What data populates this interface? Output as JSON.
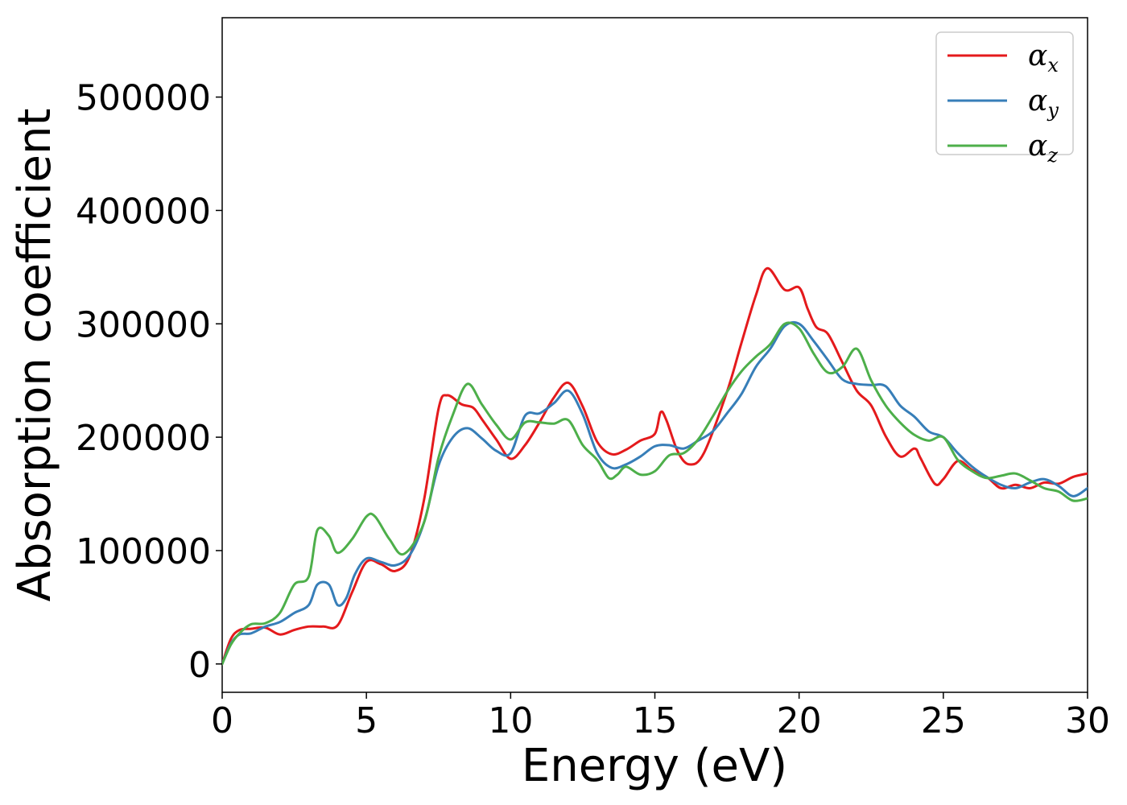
{
  "chart_data": {
    "type": "line",
    "title": "",
    "xlabel": "Energy (eV)",
    "ylabel": "Absorption coefficient",
    "xlim": [
      0,
      30
    ],
    "ylim": [
      -25000,
      570000
    ],
    "x_ticks": [
      0,
      5,
      10,
      15,
      20,
      25,
      30
    ],
    "y_ticks": [
      0,
      100000,
      200000,
      300000,
      400000,
      500000
    ],
    "grid": false,
    "legend": "top-right",
    "series": [
      {
        "name": "αx",
        "legend_base": "α",
        "legend_sub": "x",
        "color": "#e41a1c",
        "points": [
          [
            0,
            0
          ],
          [
            0.3,
            22000
          ],
          [
            0.6,
            30000
          ],
          [
            1,
            31000
          ],
          [
            1.5,
            32000
          ],
          [
            2,
            26000
          ],
          [
            2.5,
            30000
          ],
          [
            3,
            33000
          ],
          [
            3.5,
            33000
          ],
          [
            4,
            34000
          ],
          [
            4.5,
            63000
          ],
          [
            5,
            90000
          ],
          [
            5.5,
            88000
          ],
          [
            6,
            82000
          ],
          [
            6.5,
            95000
          ],
          [
            7,
            145000
          ],
          [
            7.5,
            225000
          ],
          [
            7.8,
            237000
          ],
          [
            8.3,
            229000
          ],
          [
            8.7,
            226000
          ],
          [
            9,
            216000
          ],
          [
            9.5,
            198000
          ],
          [
            10,
            181000
          ],
          [
            10.5,
            193000
          ],
          [
            11,
            213000
          ],
          [
            11.5,
            235000
          ],
          [
            12,
            248000
          ],
          [
            12.5,
            227000
          ],
          [
            13,
            196000
          ],
          [
            13.5,
            185000
          ],
          [
            14,
            189000
          ],
          [
            14.5,
            197000
          ],
          [
            15,
            203000
          ],
          [
            15.2,
            222000
          ],
          [
            15.4,
            215000
          ],
          [
            15.8,
            187000
          ],
          [
            16.2,
            176000
          ],
          [
            16.7,
            186000
          ],
          [
            17.5,
            240000
          ],
          [
            18,
            283000
          ],
          [
            18.5,
            325000
          ],
          [
            18.9,
            349000
          ],
          [
            19.5,
            330000
          ],
          [
            20,
            332000
          ],
          [
            20.3,
            313000
          ],
          [
            20.6,
            297000
          ],
          [
            21,
            291000
          ],
          [
            21.5,
            266000
          ],
          [
            22,
            241000
          ],
          [
            22.5,
            228000
          ],
          [
            23,
            201000
          ],
          [
            23.5,
            183000
          ],
          [
            24,
            190000
          ],
          [
            24.2,
            182000
          ],
          [
            24.7,
            159000
          ],
          [
            25,
            163000
          ],
          [
            25.5,
            179000
          ],
          [
            26,
            171000
          ],
          [
            26.5,
            165000
          ],
          [
            27,
            155000
          ],
          [
            27.5,
            158000
          ],
          [
            28,
            155000
          ],
          [
            28.5,
            160000
          ],
          [
            29,
            159000
          ],
          [
            29.5,
            165000
          ],
          [
            30,
            168000
          ]
        ]
      },
      {
        "name": "αy",
        "legend_base": "α",
        "legend_sub": "y",
        "color": "#377eb8",
        "points": [
          [
            0,
            0
          ],
          [
            0.3,
            18000
          ],
          [
            0.6,
            26000
          ],
          [
            1,
            27000
          ],
          [
            1.5,
            33000
          ],
          [
            2,
            37000
          ],
          [
            2.5,
            45000
          ],
          [
            3,
            52000
          ],
          [
            3.3,
            70000
          ],
          [
            3.7,
            70000
          ],
          [
            4,
            52000
          ],
          [
            4.3,
            58000
          ],
          [
            4.6,
            79000
          ],
          [
            5,
            93000
          ],
          [
            5.5,
            90000
          ],
          [
            6,
            87000
          ],
          [
            6.5,
            96000
          ],
          [
            7,
            125000
          ],
          [
            7.5,
            175000
          ],
          [
            8,
            200000
          ],
          [
            8.5,
            208000
          ],
          [
            9,
            199000
          ],
          [
            9.5,
            188000
          ],
          [
            10,
            186000
          ],
          [
            10.5,
            219000
          ],
          [
            11,
            221000
          ],
          [
            11.5,
            230000
          ],
          [
            12,
            241000
          ],
          [
            12.5,
            220000
          ],
          [
            13,
            186000
          ],
          [
            13.5,
            173000
          ],
          [
            14,
            176000
          ],
          [
            14.5,
            183000
          ],
          [
            15,
            192000
          ],
          [
            15.5,
            193000
          ],
          [
            16,
            190000
          ],
          [
            16.5,
            197000
          ],
          [
            17,
            205000
          ],
          [
            17.5,
            221000
          ],
          [
            18,
            238000
          ],
          [
            18.5,
            262000
          ],
          [
            19,
            278000
          ],
          [
            19.5,
            298000
          ],
          [
            20,
            300000
          ],
          [
            20.5,
            285000
          ],
          [
            21,
            268000
          ],
          [
            21.5,
            251000
          ],
          [
            22,
            247000
          ],
          [
            22.5,
            246000
          ],
          [
            23,
            245000
          ],
          [
            23.5,
            228000
          ],
          [
            24,
            218000
          ],
          [
            24.5,
            205000
          ],
          [
            25,
            200000
          ],
          [
            25.5,
            186000
          ],
          [
            26,
            174000
          ],
          [
            26.5,
            165000
          ],
          [
            27,
            158000
          ],
          [
            27.5,
            155000
          ],
          [
            28,
            160000
          ],
          [
            28.5,
            163000
          ],
          [
            29,
            157000
          ],
          [
            29.5,
            148000
          ],
          [
            30,
            155000
          ]
        ]
      },
      {
        "name": "αz",
        "legend_base": "α",
        "legend_sub": "z",
        "color": "#4daf4a",
        "points": [
          [
            0,
            0
          ],
          [
            0.3,
            17000
          ],
          [
            0.6,
            27000
          ],
          [
            1,
            35000
          ],
          [
            1.5,
            36000
          ],
          [
            2,
            45000
          ],
          [
            2.5,
            70000
          ],
          [
            3,
            77000
          ],
          [
            3.3,
            118000
          ],
          [
            3.7,
            113000
          ],
          [
            4,
            98000
          ],
          [
            4.5,
            110000
          ],
          [
            5,
            130000
          ],
          [
            5.3,
            130000
          ],
          [
            5.8,
            110000
          ],
          [
            6.3,
            97000
          ],
          [
            7,
            125000
          ],
          [
            7.5,
            182000
          ],
          [
            8,
            220000
          ],
          [
            8.5,
            247000
          ],
          [
            9,
            229000
          ],
          [
            9.5,
            211000
          ],
          [
            10,
            198000
          ],
          [
            10.5,
            213000
          ],
          [
            11,
            213000
          ],
          [
            11.5,
            212000
          ],
          [
            12,
            215000
          ],
          [
            12.5,
            193000
          ],
          [
            13,
            180000
          ],
          [
            13.4,
            164000
          ],
          [
            13.7,
            167000
          ],
          [
            14,
            174000
          ],
          [
            14.5,
            167000
          ],
          [
            15,
            170000
          ],
          [
            15.5,
            184000
          ],
          [
            16,
            186000
          ],
          [
            16.5,
            198000
          ],
          [
            17,
            218000
          ],
          [
            17.5,
            240000
          ],
          [
            18,
            258000
          ],
          [
            18.5,
            271000
          ],
          [
            19,
            282000
          ],
          [
            19.5,
            300000
          ],
          [
            20,
            296000
          ],
          [
            20.5,
            274000
          ],
          [
            21,
            257000
          ],
          [
            21.5,
            262000
          ],
          [
            22,
            278000
          ],
          [
            22.5,
            250000
          ],
          [
            23,
            228000
          ],
          [
            23.5,
            213000
          ],
          [
            24,
            202000
          ],
          [
            24.5,
            197000
          ],
          [
            25,
            200000
          ],
          [
            25.5,
            180000
          ],
          [
            26,
            170000
          ],
          [
            26.5,
            164000
          ],
          [
            27,
            166000
          ],
          [
            27.5,
            168000
          ],
          [
            28,
            162000
          ],
          [
            28.5,
            155000
          ],
          [
            29,
            152000
          ],
          [
            29.5,
            144000
          ],
          [
            30,
            146000
          ]
        ]
      }
    ]
  }
}
